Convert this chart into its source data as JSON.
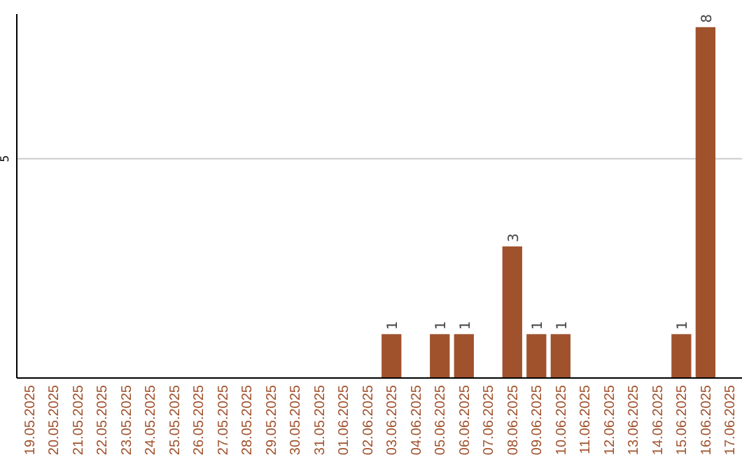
{
  "chart_data": {
    "type": "bar",
    "categories": [
      "19.05.2025",
      "20.05.2025",
      "21.05.2025",
      "22.05.2025",
      "23.05.2025",
      "24.05.2025",
      "25.05.2025",
      "26.05.2025",
      "27.05.2025",
      "28.05.2025",
      "29.05.2025",
      "30.05.2025",
      "31.05.2025",
      "01.06.2025",
      "02.06.2025",
      "03.06.2025",
      "04.06.2025",
      "05.06.2025",
      "06.06.2025",
      "07.06.2025",
      "08.06.2025",
      "09.06.2025",
      "10.06.2025",
      "11.06.2025",
      "12.06.2025",
      "13.06.2025",
      "14.06.2025",
      "15.06.2025",
      "16.06.2025",
      "17.06.2025"
    ],
    "values": [
      null,
      null,
      null,
      null,
      null,
      null,
      null,
      null,
      null,
      null,
      null,
      null,
      null,
      null,
      null,
      1,
      null,
      1,
      1,
      null,
      3,
      1,
      1,
      null,
      null,
      null,
      null,
      1,
      8,
      null
    ],
    "data_labels": true,
    "color": "#a0522d",
    "ylim": [
      0,
      8.3
    ],
    "ref_lines": [
      {
        "axis": "y",
        "value": 5,
        "label": "5",
        "color": "#cccccc"
      }
    ]
  }
}
